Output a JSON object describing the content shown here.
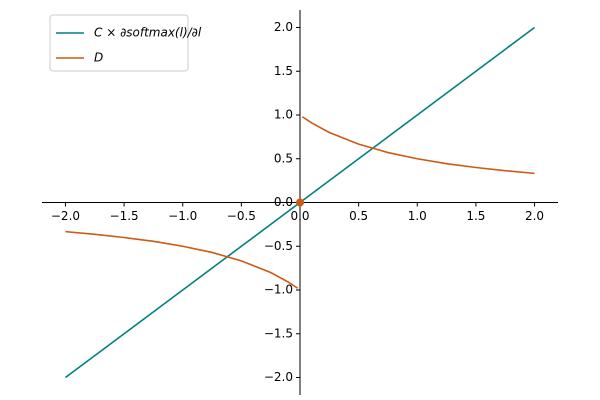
{
  "chart_data": {
    "type": "line",
    "x": [
      -2,
      -1.75,
      -1.5,
      -1.25,
      -1,
      -0.75,
      -0.5,
      -0.25,
      -0.1,
      -0.02,
      0,
      0.02,
      0.1,
      0.25,
      0.5,
      0.75,
      1,
      1.25,
      1.5,
      1.75,
      2
    ],
    "series": [
      {
        "name": "C × ∂softmax(l)/∂l",
        "color": "#008080",
        "values": [
          -2,
          -1.75,
          -1.5,
          -1.25,
          -1,
          -0.75,
          -0.5,
          -0.25,
          -0.1,
          -0.02,
          0,
          0.02,
          0.1,
          0.25,
          0.5,
          0.75,
          1,
          1.25,
          1.5,
          1.75,
          2
        ]
      },
      {
        "name": "D",
        "color": "#cc5a14",
        "values": [
          -0.333,
          -0.364,
          -0.4,
          -0.444,
          -0.5,
          -0.571,
          -0.667,
          -0.8,
          -0.909,
          -0.98,
          null,
          0.98,
          0.909,
          0.8,
          0.667,
          0.571,
          0.5,
          0.444,
          0.4,
          0.364,
          0.333
        ]
      }
    ],
    "point": {
      "x": 0,
      "y": 0,
      "color": "#cc5a14"
    },
    "xlim": [
      -2.2,
      2.2
    ],
    "ylim": [
      -2.2,
      2.2
    ],
    "xticks": [
      {
        "value": -2,
        "label": "−2.0"
      },
      {
        "value": -1.5,
        "label": "−1.5"
      },
      {
        "value": -1,
        "label": "−1.0"
      },
      {
        "value": -0.5,
        "label": "−0.5"
      },
      {
        "value": 0,
        "label": "0.0"
      },
      {
        "value": 0.5,
        "label": "0.5"
      },
      {
        "value": 1,
        "label": "1.0"
      },
      {
        "value": 1.5,
        "label": "1.5"
      },
      {
        "value": 2,
        "label": "2.0"
      }
    ],
    "yticks": [
      {
        "value": -2,
        "label": "−2.0"
      },
      {
        "value": -1.5,
        "label": "−1.5"
      },
      {
        "value": -1,
        "label": "−1.0"
      },
      {
        "value": -0.5,
        "label": "−0.5"
      },
      {
        "value": 0,
        "label": "0.0"
      },
      {
        "value": 0.5,
        "label": "0.5"
      },
      {
        "value": 1,
        "label": "1.0"
      },
      {
        "value": 1.5,
        "label": "1.5"
      },
      {
        "value": 2,
        "label": "2.0"
      }
    ],
    "legend": "upper left"
  }
}
